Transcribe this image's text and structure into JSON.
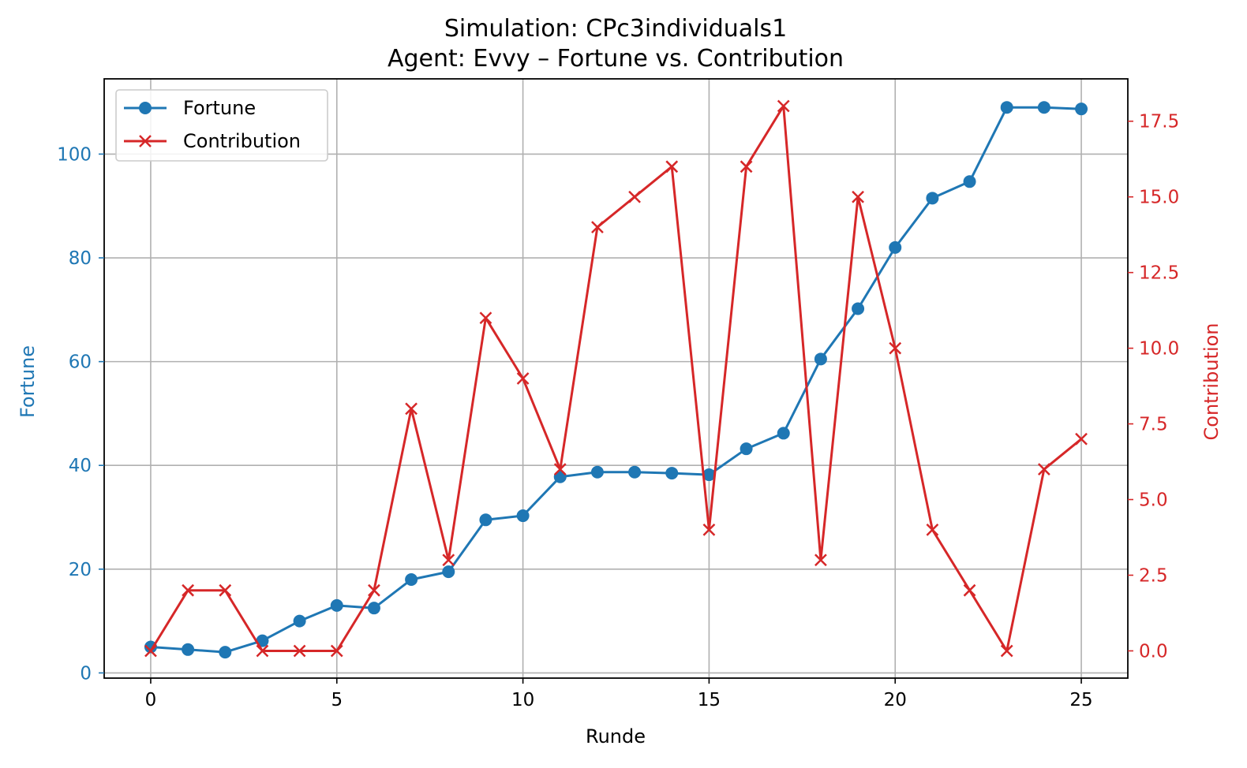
{
  "chart_data": {
    "type": "line",
    "title_line1": "Simulation: CPc3individuals1",
    "title_line2": "Agent: Evvy – Fortune vs. Contribution",
    "xlabel": "Runde",
    "ylabel_left": "Fortune",
    "ylabel_right": "Contribution",
    "xlim": [
      -1.25,
      26.25
    ],
    "ylim_left": [
      -1.0,
      114.5
    ],
    "ylim_right": [
      -0.9,
      18.9
    ],
    "x_ticks": [
      0,
      5,
      10,
      15,
      20,
      25
    ],
    "x_tick_labels": [
      "0",
      "5",
      "10",
      "15",
      "20",
      "25"
    ],
    "y_left_ticks": [
      0,
      20,
      40,
      60,
      80,
      100
    ],
    "y_left_tick_labels": [
      "0",
      "20",
      "40",
      "60",
      "80",
      "100"
    ],
    "y_right_ticks": [
      0,
      2.5,
      5,
      7.5,
      10,
      12.5,
      15,
      17.5
    ],
    "y_right_tick_labels": [
      "0.0",
      "2.5",
      "5.0",
      "7.5",
      "10.0",
      "12.5",
      "15.0",
      "17.5"
    ],
    "grid": true,
    "legend_position": "top-left",
    "x": [
      0,
      1,
      2,
      3,
      4,
      5,
      6,
      7,
      8,
      9,
      10,
      11,
      12,
      13,
      14,
      15,
      16,
      17,
      18,
      19,
      20,
      21,
      22,
      23,
      24,
      25
    ],
    "series": [
      {
        "name": "Fortune",
        "axis": "left",
        "color": "#1f77b4",
        "marker": "circle",
        "values": [
          5.0,
          4.5,
          4.0,
          6.2,
          10.0,
          13.0,
          12.5,
          18.0,
          19.5,
          29.5,
          30.3,
          37.8,
          38.7,
          38.7,
          38.5,
          38.2,
          43.2,
          46.2,
          60.5,
          70.2,
          82.0,
          91.5,
          94.7,
          109.0,
          109.0,
          108.7
        ]
      },
      {
        "name": "Contribution",
        "axis": "right",
        "color": "#d62728",
        "marker": "x",
        "values": [
          0,
          2,
          2,
          0,
          0,
          0,
          2,
          8,
          3,
          11,
          9,
          6,
          14,
          15,
          16,
          4,
          16,
          18,
          3,
          15,
          10,
          4,
          2,
          0,
          6,
          7
        ]
      }
    ]
  }
}
